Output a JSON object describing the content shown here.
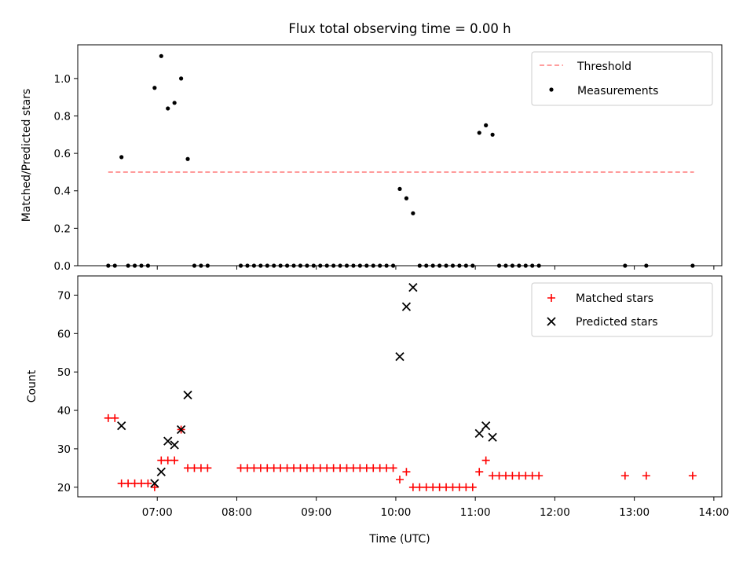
{
  "title": "Flux total observing time = 0.00 h",
  "x_axis": {
    "label": "Time (UTC)",
    "ticks": [
      "07:00",
      "08:00",
      "09:00",
      "10:00",
      "11:00",
      "12:00",
      "13:00",
      "14:00"
    ],
    "tick_hours": [
      7,
      8,
      9,
      10,
      11,
      12,
      13,
      14
    ],
    "range_hours": [
      6.0,
      14.1
    ]
  },
  "colors": {
    "threshold": "#ff7f7f",
    "measurements": "#000000",
    "matched": "#ff0000",
    "predicted": "#000000"
  },
  "chart_data": [
    {
      "type": "scatter",
      "ylabel": "Matched/Predicted stars",
      "ylim": [
        0,
        1.18
      ],
      "yticks": [
        "0.0",
        "0.2",
        "0.4",
        "0.6",
        "0.8",
        "1.0"
      ],
      "ytick_values": [
        0,
        0.2,
        0.4,
        0.6,
        0.8,
        1.0
      ],
      "legend_position": "top-right",
      "threshold": {
        "name": "Threshold",
        "value": 0.5,
        "x_range": [
          "06:23",
          "13:45"
        ]
      },
      "series": [
        {
          "name": "Measurements",
          "points": [
            [
              "06:23",
              0
            ],
            [
              "06:28",
              0
            ],
            [
              "06:33",
              0.58
            ],
            [
              "06:38",
              0
            ],
            [
              "06:43",
              0
            ],
            [
              "06:48",
              0
            ],
            [
              "06:53",
              0
            ],
            [
              "06:58",
              0.95
            ],
            [
              "07:03",
              1.12
            ],
            [
              "07:08",
              0.84
            ],
            [
              "07:13",
              0.87
            ],
            [
              "07:18",
              1.0
            ],
            [
              "07:23",
              0.57
            ],
            [
              "07:28",
              0
            ],
            [
              "07:33",
              0
            ],
            [
              "07:38",
              0
            ],
            [
              "08:03",
              0
            ],
            [
              "08:08",
              0
            ],
            [
              "08:13",
              0
            ],
            [
              "08:18",
              0
            ],
            [
              "08:23",
              0
            ],
            [
              "08:28",
              0
            ],
            [
              "08:33",
              0
            ],
            [
              "08:38",
              0
            ],
            [
              "08:43",
              0
            ],
            [
              "08:48",
              0
            ],
            [
              "08:53",
              0
            ],
            [
              "08:58",
              0
            ],
            [
              "09:03",
              0
            ],
            [
              "09:08",
              0
            ],
            [
              "09:13",
              0
            ],
            [
              "09:18",
              0
            ],
            [
              "09:23",
              0
            ],
            [
              "09:28",
              0
            ],
            [
              "09:33",
              0
            ],
            [
              "09:38",
              0
            ],
            [
              "09:43",
              0
            ],
            [
              "09:48",
              0
            ],
            [
              "09:53",
              0
            ],
            [
              "09:58",
              0
            ],
            [
              "10:03",
              0.41
            ],
            [
              "10:08",
              0.36
            ],
            [
              "10:13",
              0.28
            ],
            [
              "10:18",
              0
            ],
            [
              "10:23",
              0
            ],
            [
              "10:28",
              0
            ],
            [
              "10:33",
              0
            ],
            [
              "10:38",
              0
            ],
            [
              "10:43",
              0
            ],
            [
              "10:48",
              0
            ],
            [
              "10:53",
              0
            ],
            [
              "10:58",
              0
            ],
            [
              "11:03",
              0.71
            ],
            [
              "11:08",
              0.75
            ],
            [
              "11:13",
              0.7
            ],
            [
              "11:18",
              0
            ],
            [
              "11:23",
              0
            ],
            [
              "11:28",
              0
            ],
            [
              "11:33",
              0
            ],
            [
              "11:38",
              0
            ],
            [
              "11:43",
              0
            ],
            [
              "11:48",
              0
            ],
            [
              "12:53",
              0
            ],
            [
              "13:09",
              0
            ],
            [
              "13:44",
              0
            ]
          ]
        }
      ]
    },
    {
      "type": "scatter",
      "ylabel": "Count",
      "ylim": [
        17.5,
        75
      ],
      "yticks": [
        "20",
        "30",
        "40",
        "50",
        "60",
        "70"
      ],
      "ytick_values": [
        20,
        30,
        40,
        50,
        60,
        70
      ],
      "legend_position": "top-right",
      "series": [
        {
          "name": "Matched stars",
          "marker": "plus",
          "points": [
            [
              "06:23",
              38
            ],
            [
              "06:28",
              38
            ],
            [
              "06:33",
              21
            ],
            [
              "06:38",
              21
            ],
            [
              "06:43",
              21
            ],
            [
              "06:48",
              21
            ],
            [
              "06:53",
              21
            ],
            [
              "06:58",
              20
            ],
            [
              "07:03",
              27
            ],
            [
              "07:08",
              27
            ],
            [
              "07:13",
              27
            ],
            [
              "07:18",
              35
            ],
            [
              "07:23",
              25
            ],
            [
              "07:28",
              25
            ],
            [
              "07:33",
              25
            ],
            [
              "07:38",
              25
            ],
            [
              "08:03",
              25
            ],
            [
              "08:08",
              25
            ],
            [
              "08:13",
              25
            ],
            [
              "08:18",
              25
            ],
            [
              "08:23",
              25
            ],
            [
              "08:28",
              25
            ],
            [
              "08:33",
              25
            ],
            [
              "08:38",
              25
            ],
            [
              "08:43",
              25
            ],
            [
              "08:48",
              25
            ],
            [
              "08:53",
              25
            ],
            [
              "08:58",
              25
            ],
            [
              "09:03",
              25
            ],
            [
              "09:08",
              25
            ],
            [
              "09:13",
              25
            ],
            [
              "09:18",
              25
            ],
            [
              "09:23",
              25
            ],
            [
              "09:28",
              25
            ],
            [
              "09:33",
              25
            ],
            [
              "09:38",
              25
            ],
            [
              "09:43",
              25
            ],
            [
              "09:48",
              25
            ],
            [
              "09:53",
              25
            ],
            [
              "09:58",
              25
            ],
            [
              "10:03",
              22
            ],
            [
              "10:08",
              24
            ],
            [
              "10:13",
              20
            ],
            [
              "10:18",
              20
            ],
            [
              "10:23",
              20
            ],
            [
              "10:28",
              20
            ],
            [
              "10:33",
              20
            ],
            [
              "10:38",
              20
            ],
            [
              "10:43",
              20
            ],
            [
              "10:48",
              20
            ],
            [
              "10:53",
              20
            ],
            [
              "10:58",
              20
            ],
            [
              "11:03",
              24
            ],
            [
              "11:08",
              27
            ],
            [
              "11:13",
              23
            ],
            [
              "11:18",
              23
            ],
            [
              "11:23",
              23
            ],
            [
              "11:28",
              23
            ],
            [
              "11:33",
              23
            ],
            [
              "11:38",
              23
            ],
            [
              "11:43",
              23
            ],
            [
              "11:48",
              23
            ],
            [
              "12:53",
              23
            ],
            [
              "13:09",
              23
            ],
            [
              "13:44",
              23
            ]
          ]
        },
        {
          "name": "Predicted stars",
          "marker": "x",
          "points": [
            [
              "06:33",
              36
            ],
            [
              "06:58",
              21
            ],
            [
              "07:03",
              24
            ],
            [
              "07:08",
              32
            ],
            [
              "07:13",
              31
            ],
            [
              "07:18",
              35
            ],
            [
              "07:23",
              44
            ],
            [
              "10:03",
              54
            ],
            [
              "10:08",
              67
            ],
            [
              "10:13",
              72
            ],
            [
              "11:03",
              34
            ],
            [
              "11:08",
              36
            ],
            [
              "11:13",
              33
            ]
          ]
        }
      ]
    }
  ]
}
